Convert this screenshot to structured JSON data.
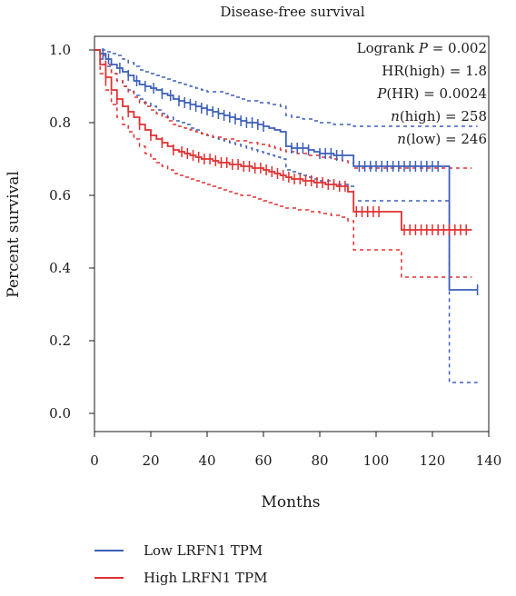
{
  "chart_data": {
    "type": "line",
    "title": "Disease-free survival",
    "xlabel": "Months",
    "ylabel": "Percent survival",
    "xlim": [
      0,
      140
    ],
    "ylim": [
      0.0,
      1.0
    ],
    "x_ticks": [
      "0",
      "20",
      "40",
      "60",
      "80",
      "100",
      "120",
      "140"
    ],
    "y_ticks": [
      "0.0",
      "0.2",
      "0.4",
      "0.6",
      "0.8",
      "1.0"
    ],
    "stats": [
      {
        "name": "Logrank ",
        "italic": "P",
        "rest": " = 0.002"
      },
      {
        "name": "HR(high) = 1.8",
        "italic": "",
        "rest": ""
      },
      {
        "name": "",
        "italic": "P",
        "rest": "(HR) = 0.0024"
      },
      {
        "name": "",
        "italic": "n",
        "rest": "(high) = 258"
      },
      {
        "name": "",
        "italic": "n",
        "rest": "(low) = 246"
      }
    ],
    "series": [
      {
        "name": "Low LRFN1 TPM",
        "color": "#3b5fb8",
        "x": [
          0,
          2,
          4,
          6,
          8,
          10,
          12,
          14,
          16,
          18,
          20,
          22,
          24,
          26,
          28,
          30,
          32,
          34,
          36,
          38,
          40,
          42,
          44,
          46,
          48,
          50,
          52,
          54,
          56,
          58,
          60,
          62,
          64,
          66,
          68,
          70,
          72,
          74,
          76,
          78,
          80,
          85,
          90,
          92,
          95,
          100,
          105,
          110,
          115,
          120,
          126,
          130,
          136
        ],
        "y": [
          1.0,
          0.99,
          0.975,
          0.96,
          0.95,
          0.94,
          0.93,
          0.915,
          0.905,
          0.9,
          0.895,
          0.89,
          0.88,
          0.875,
          0.865,
          0.86,
          0.855,
          0.85,
          0.845,
          0.84,
          0.835,
          0.83,
          0.825,
          0.82,
          0.815,
          0.81,
          0.805,
          0.8,
          0.8,
          0.795,
          0.79,
          0.785,
          0.78,
          0.775,
          0.735,
          0.73,
          0.73,
          0.73,
          0.725,
          0.72,
          0.715,
          0.71,
          0.71,
          0.68,
          0.68,
          0.68,
          0.68,
          0.68,
          0.68,
          0.68,
          0.34,
          0.34,
          0.34
        ],
        "ci_upper": [
          1.0,
          1.0,
          0.995,
          0.99,
          0.985,
          0.975,
          0.965,
          0.955,
          0.945,
          0.94,
          0.935,
          0.93,
          0.925,
          0.92,
          0.915,
          0.91,
          0.905,
          0.9,
          0.895,
          0.89,
          0.885,
          0.885,
          0.885,
          0.88,
          0.875,
          0.87,
          0.865,
          0.86,
          0.86,
          0.855,
          0.855,
          0.85,
          0.85,
          0.845,
          0.82,
          0.815,
          0.815,
          0.81,
          0.81,
          0.805,
          0.8,
          0.795,
          0.795,
          0.79,
          0.79,
          0.79,
          0.79,
          0.79,
          0.79,
          0.79,
          0.79,
          0.79,
          0.79
        ],
        "ci_lower": [
          1.0,
          0.975,
          0.955,
          0.935,
          0.915,
          0.9,
          0.89,
          0.875,
          0.865,
          0.855,
          0.845,
          0.835,
          0.825,
          0.815,
          0.805,
          0.8,
          0.795,
          0.785,
          0.78,
          0.77,
          0.765,
          0.76,
          0.755,
          0.75,
          0.745,
          0.74,
          0.735,
          0.73,
          0.725,
          0.72,
          0.715,
          0.71,
          0.705,
          0.7,
          0.67,
          0.665,
          0.66,
          0.655,
          0.65,
          0.645,
          0.64,
          0.63,
          0.625,
          0.585,
          0.585,
          0.585,
          0.585,
          0.585,
          0.585,
          0.585,
          0.085,
          0.085,
          0.085
        ],
        "censor_x": [
          3,
          5,
          9,
          12,
          15,
          18,
          21,
          24,
          27,
          30,
          32,
          34,
          36,
          38,
          40,
          42,
          44,
          46,
          48,
          50,
          52,
          54,
          56,
          58,
          60,
          70,
          72,
          74,
          76,
          80,
          82,
          84,
          86,
          88,
          94,
          96,
          98,
          100,
          102,
          104,
          106,
          108,
          110,
          112,
          114,
          116,
          118,
          120,
          122,
          136
        ]
      },
      {
        "name": "High LRFN1 TPM",
        "color": "#e03030",
        "x": [
          0,
          2,
          4,
          6,
          8,
          10,
          12,
          14,
          16,
          18,
          20,
          22,
          24,
          26,
          28,
          30,
          32,
          34,
          36,
          38,
          40,
          42,
          44,
          46,
          48,
          50,
          52,
          54,
          56,
          58,
          60,
          62,
          64,
          66,
          68,
          70,
          72,
          74,
          76,
          78,
          80,
          82,
          84,
          86,
          88,
          90,
          92,
          95,
          100,
          105,
          109,
          115,
          120,
          125,
          130,
          134
        ],
        "y": [
          1.0,
          0.96,
          0.925,
          0.89,
          0.865,
          0.845,
          0.83,
          0.815,
          0.795,
          0.78,
          0.765,
          0.755,
          0.745,
          0.735,
          0.725,
          0.72,
          0.715,
          0.71,
          0.705,
          0.7,
          0.7,
          0.695,
          0.69,
          0.69,
          0.685,
          0.685,
          0.68,
          0.68,
          0.675,
          0.675,
          0.67,
          0.665,
          0.66,
          0.655,
          0.65,
          0.645,
          0.645,
          0.64,
          0.64,
          0.635,
          0.635,
          0.63,
          0.63,
          0.625,
          0.625,
          0.61,
          0.555,
          0.555,
          0.555,
          0.555,
          0.505,
          0.505,
          0.505,
          0.505,
          0.505,
          0.505
        ],
        "ci_upper": [
          1.0,
          0.985,
          0.96,
          0.935,
          0.915,
          0.9,
          0.885,
          0.87,
          0.855,
          0.845,
          0.835,
          0.825,
          0.815,
          0.805,
          0.795,
          0.79,
          0.785,
          0.78,
          0.775,
          0.77,
          0.765,
          0.76,
          0.76,
          0.755,
          0.755,
          0.75,
          0.75,
          0.745,
          0.745,
          0.74,
          0.74,
          0.735,
          0.73,
          0.725,
          0.72,
          0.72,
          0.715,
          0.715,
          0.71,
          0.71,
          0.705,
          0.705,
          0.7,
          0.7,
          0.695,
          0.69,
          0.675,
          0.675,
          0.675,
          0.675,
          0.675,
          0.675,
          0.675,
          0.675,
          0.675,
          0.675
        ],
        "ci_lower": [
          1.0,
          0.935,
          0.89,
          0.85,
          0.815,
          0.795,
          0.775,
          0.755,
          0.735,
          0.715,
          0.7,
          0.69,
          0.68,
          0.67,
          0.66,
          0.655,
          0.65,
          0.645,
          0.64,
          0.635,
          0.63,
          0.625,
          0.62,
          0.615,
          0.61,
          0.605,
          0.6,
          0.6,
          0.595,
          0.59,
          0.585,
          0.58,
          0.575,
          0.57,
          0.565,
          0.565,
          0.56,
          0.56,
          0.555,
          0.555,
          0.55,
          0.55,
          0.545,
          0.545,
          0.54,
          0.53,
          0.45,
          0.45,
          0.45,
          0.45,
          0.375,
          0.375,
          0.375,
          0.375,
          0.375,
          0.375
        ],
        "censor_x": [
          4,
          8,
          12,
          16,
          20,
          24,
          28,
          31,
          33,
          35,
          37,
          39,
          41,
          43,
          45,
          47,
          49,
          51,
          53,
          55,
          57,
          59,
          61,
          63,
          65,
          67,
          69,
          71,
          73,
          75,
          77,
          79,
          81,
          83,
          85,
          87,
          89,
          93,
          95,
          97,
          99,
          101,
          110,
          112,
          114,
          116,
          118,
          120,
          122,
          124,
          126,
          128,
          130,
          132
        ]
      }
    ],
    "legend_position": "bottom-left"
  }
}
